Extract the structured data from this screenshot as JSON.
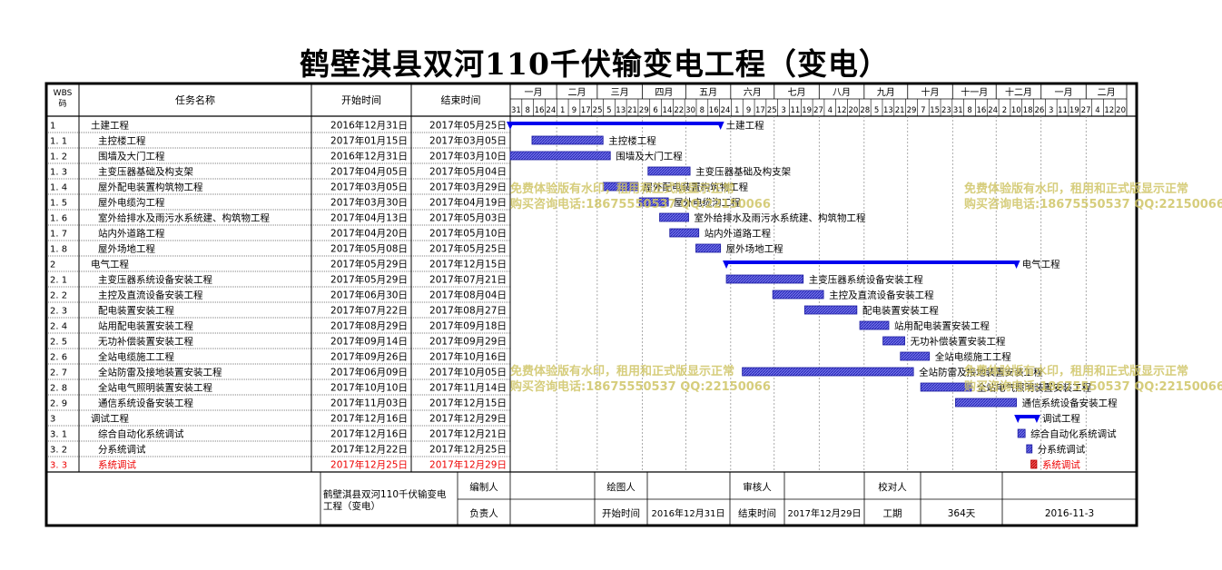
{
  "title": "鹤壁淇县双河110千伏输变电工程（变电）",
  "header": {
    "wbs": "WBS\n码",
    "name": "任务名称",
    "start": "开始时间",
    "end": "结束时间"
  },
  "timeline": {
    "months": [
      "一月",
      "二月",
      "三月",
      "四月",
      "五月",
      "六月",
      "七月",
      "八月",
      "九月",
      "十月",
      "十一月",
      "十二月",
      "一月",
      "二月"
    ],
    "week_days": [
      "31",
      "8",
      "16",
      "24",
      "1",
      "9",
      "17",
      "25",
      "5",
      "13",
      "21",
      "29",
      "6",
      "14",
      "22",
      "30",
      "8",
      "16",
      "24",
      "1",
      "9",
      "17",
      "25",
      "3",
      "11",
      "19",
      "27",
      "4",
      "12",
      "20",
      "28",
      "5",
      "13",
      "21",
      "29",
      "7",
      "15",
      "23",
      "31",
      "8",
      "16",
      "24",
      "2",
      "10",
      "18",
      "26",
      "3",
      "11",
      "19",
      "27",
      "4",
      "12",
      "20"
    ]
  },
  "chart_data": {
    "type": "gantt",
    "title": "鹤壁淇县双河110千伏输变电工程（变电）",
    "tasks": [
      {
        "wbs": "1",
        "name": "土建工程",
        "start": "2016年12月31日",
        "end": "2017年05月25日",
        "s": "2016-12-31",
        "e": "2017-05-25",
        "summary": true,
        "level": 0
      },
      {
        "wbs": "1.1",
        "name": "主控楼工程",
        "start": "2017年01月15日",
        "end": "2017年03月05日",
        "s": "2017-01-15",
        "e": "2017-03-05",
        "level": 1
      },
      {
        "wbs": "1.2",
        "name": "围墙及大门工程",
        "start": "2016年12月31日",
        "end": "2017年03月10日",
        "s": "2016-12-31",
        "e": "2017-03-10",
        "level": 1
      },
      {
        "wbs": "1.3",
        "name": "主变压器基础及构支架",
        "start": "2017年04月05日",
        "end": "2017年05月04日",
        "s": "2017-04-05",
        "e": "2017-05-04",
        "level": 1
      },
      {
        "wbs": "1.4",
        "name": "屋外配电装置构筑物工程",
        "start": "2017年03月05日",
        "end": "2017年03月29日",
        "s": "2017-03-05",
        "e": "2017-03-29",
        "level": 1
      },
      {
        "wbs": "1.5",
        "name": "屋外电缆沟工程",
        "start": "2017年03月30日",
        "end": "2017年04月19日",
        "s": "2017-03-30",
        "e": "2017-04-19",
        "level": 1
      },
      {
        "wbs": "1.6",
        "name": "室外给排水及雨污水系统建、构筑物工程",
        "start": "2017年04月13日",
        "end": "2017年05月03日",
        "s": "2017-04-13",
        "e": "2017-05-03",
        "level": 1
      },
      {
        "wbs": "1.7",
        "name": "站内外道路工程",
        "start": "2017年04月20日",
        "end": "2017年05月10日",
        "s": "2017-04-20",
        "e": "2017-05-10",
        "level": 1
      },
      {
        "wbs": "1.8",
        "name": "屋外场地工程",
        "start": "2017年05月08日",
        "end": "2017年05月25日",
        "s": "2017-05-08",
        "e": "2017-05-25",
        "level": 1
      },
      {
        "wbs": "2",
        "name": "电气工程",
        "start": "2017年05月29日",
        "end": "2017年12月15日",
        "s": "2017-05-29",
        "e": "2017-12-15",
        "summary": true,
        "level": 0
      },
      {
        "wbs": "2.1",
        "name": "主变压器系统设备安装工程",
        "start": "2017年05月29日",
        "end": "2017年07月21日",
        "s": "2017-05-29",
        "e": "2017-07-21",
        "level": 1
      },
      {
        "wbs": "2.2",
        "name": "主控及直流设备安装工程",
        "start": "2017年06月30日",
        "end": "2017年08月04日",
        "s": "2017-06-30",
        "e": "2017-08-04",
        "level": 1
      },
      {
        "wbs": "2.3",
        "name": "配电装置安装工程",
        "start": "2017年07月22日",
        "end": "2017年08月27日",
        "s": "2017-07-22",
        "e": "2017-08-27",
        "level": 1
      },
      {
        "wbs": "2.4",
        "name": "站用配电装置安装工程",
        "start": "2017年08月29日",
        "end": "2017年09月18日",
        "s": "2017-08-29",
        "e": "2017-09-18",
        "level": 1
      },
      {
        "wbs": "2.5",
        "name": "无功补偿装置安装工程",
        "start": "2017年09月14日",
        "end": "2017年09月29日",
        "s": "2017-09-14",
        "e": "2017-09-29",
        "level": 1
      },
      {
        "wbs": "2.6",
        "name": "全站电缆施工工程",
        "start": "2017年09月26日",
        "end": "2017年10月16日",
        "s": "2017-09-26",
        "e": "2017-10-16",
        "level": 1
      },
      {
        "wbs": "2.7",
        "name": "全站防雷及接地装置安装工程",
        "start": "2017年06月09日",
        "end": "2017年10月05日",
        "s": "2017-06-09",
        "e": "2017-10-05",
        "level": 1
      },
      {
        "wbs": "2.8",
        "name": "全站电气照明装置安装工程",
        "start": "2017年10月10日",
        "end": "2017年11月14日",
        "s": "2017-10-10",
        "e": "2017-11-14",
        "level": 1
      },
      {
        "wbs": "2.9",
        "name": "通信系统设备安装工程",
        "start": "2017年11月03日",
        "end": "2017年12月15日",
        "s": "2017-11-03",
        "e": "2017-12-15",
        "level": 1
      },
      {
        "wbs": "3",
        "name": "调试工程",
        "start": "2017年12月16日",
        "end": "2017年12月29日",
        "s": "2017-12-16",
        "e": "2017-12-29",
        "summary": true,
        "level": 0
      },
      {
        "wbs": "3.1",
        "name": "综合自动化系统调试",
        "start": "2017年12月16日",
        "end": "2017年12月21日",
        "s": "2017-12-16",
        "e": "2017-12-21",
        "level": 1
      },
      {
        "wbs": "3.2",
        "name": "分系统调试",
        "start": "2017年12月22日",
        "end": "2017年12月25日",
        "s": "2017-12-22",
        "e": "2017-12-25",
        "level": 1
      },
      {
        "wbs": "3.3",
        "name": "系统调试",
        "start": "2017年12月25日",
        "end": "2017年12月29日",
        "s": "2017-12-25",
        "e": "2017-12-29",
        "level": 1,
        "critical": true
      }
    ],
    "axis_start": "2016-12-31",
    "axis_end": "2018-02-28"
  },
  "footer": {
    "project": "鹤壁淇县双河110千伏输变电工程（变电）",
    "editor_label": "编制人",
    "drawer_label": "绘图人",
    "reviewer_label": "审核人",
    "checker_label": "校对人",
    "owner_label": "负责人",
    "start_label": "开始时间",
    "start_value": "2016年12月31日",
    "end_label": "结束时间",
    "end_value": "2017年12月29日",
    "duration_label": "工期",
    "duration_value": "364天",
    "date": "2016-11-3"
  },
  "watermark": {
    "line1": "免费体验版有水印，租用和正式版显示正常",
    "line2": "购买咨询电话:18675550537 QQ:22150066"
  },
  "colors": {
    "summary": "#0000ee",
    "bar": "#3333cc",
    "critical": "#ee0000",
    "grid": "#888888"
  }
}
